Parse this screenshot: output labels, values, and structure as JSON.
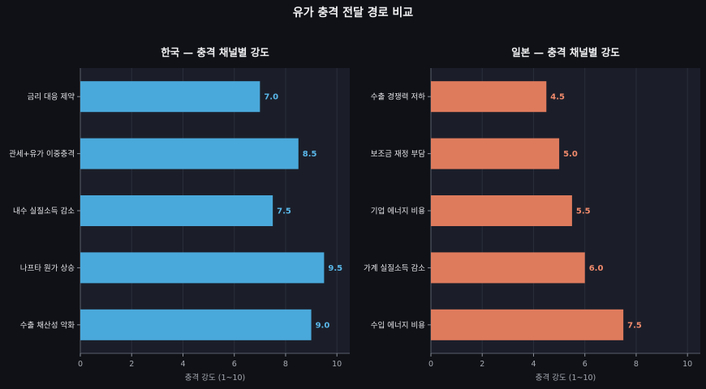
{
  "figure": {
    "title": "유가 충격 전달 경로 비교"
  },
  "chart_data": [
    {
      "type": "bar",
      "orientation": "horizontal",
      "title": "한국 — 충격 채널별 강도",
      "xlabel": "충격 강도 (1~10)",
      "ylabel": "",
      "xlim": [
        0,
        10.5
      ],
      "xticks": [
        0,
        2,
        4,
        6,
        8,
        10
      ],
      "grid": true,
      "color": "#4aa9db",
      "label_color": "#5ab8ea",
      "categories": [
        "금리 대응 제약",
        "관세+유가 이중충격",
        "내수 실질소득 감소",
        "나프타 원가 상승",
        "수출 채산성 악화"
      ],
      "values": [
        7.0,
        8.5,
        7.5,
        9.5,
        9.0
      ],
      "value_labels": [
        "7.0",
        "8.5",
        "7.5",
        "9.5",
        "9.0"
      ]
    },
    {
      "type": "bar",
      "orientation": "horizontal",
      "title": "일본 — 충격 채널별 강도",
      "xlabel": "충격 강도 (1~10)",
      "ylabel": "",
      "xlim": [
        0,
        10.5
      ],
      "xticks": [
        0,
        2,
        4,
        6,
        8,
        10
      ],
      "grid": true,
      "color": "#df7b5d",
      "label_color": "#f08a6c",
      "categories": [
        "수출 경쟁력 저하",
        "보조금 재정 부담",
        "기업 에너지 비용",
        "가계 실질소득 감소",
        "수입 에너지 비용"
      ],
      "values": [
        4.5,
        5.0,
        5.5,
        6.0,
        7.5
      ],
      "value_labels": [
        "4.5",
        "5.0",
        "5.5",
        "6.0",
        "7.5"
      ]
    }
  ]
}
